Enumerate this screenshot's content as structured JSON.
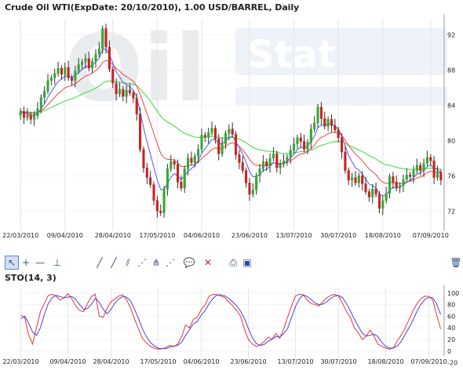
{
  "title": "Crude Oil WTI(ExpDate: 20/10/2010), 1.00 USD/BARREL, Daily",
  "watermark": {
    "left": "Oil",
    "right": "Stat"
  },
  "colors": {
    "up": "#33aa33",
    "down": "#cc2222",
    "ma_fast": "#5555ee",
    "ma_mid": "#ee4444",
    "ma_slow": "#33dd33",
    "sto_k": "#ee3333",
    "sto_d": "#4444dd"
  },
  "toolbar": {
    "tools": [
      "cursor-tool",
      "crosshair-tool",
      "horizontal-line-tool",
      "vertical-line-tool",
      "trend-line-tool",
      "ray-tool",
      "parallel-channel-tool",
      "fan-tool",
      "pitchfork-tool",
      "speed-lines-tool",
      "label-tool",
      "delete-tool",
      "print-tool",
      "save-tool",
      "trash-tool"
    ]
  },
  "sto_title": "STO(14, 3)",
  "chart_data": [
    {
      "type": "candlestick",
      "title": "Crude Oil WTI(ExpDate: 20/10/2010), 1.00 USD/BARREL, Daily",
      "x_tick_labels": [
        "22/03/2010",
        "09/04/2010",
        "28/04/2010",
        "17/05/2010",
        "04/06/2010",
        "23/06/2010",
        "13/07/2010",
        "30/07/2010",
        "18/08/2010",
        "07/09/2010"
      ],
      "y_ticks": [
        72,
        76,
        80,
        84,
        88,
        92
      ],
      "ylim": [
        69.8,
        93.8
      ],
      "close": [
        83.3,
        82.6,
        82.9,
        82.4,
        82.8,
        83.6,
        84.9,
        85.6,
        86.8,
        87.1,
        87.6,
        88.2,
        87.5,
        88.3,
        87.1,
        86.8,
        87.9,
        88.6,
        88.9,
        89.3,
        88.2,
        89.0,
        89.8,
        90.4,
        92.7,
        90.6,
        88.1,
        86.5,
        85.3,
        85.8,
        85.0,
        85.7,
        85.4,
        84.8,
        83.0,
        79.0,
        76.9,
        75.8,
        75.0,
        73.2,
        72.0,
        71.8,
        74.5,
        76.8,
        77.6,
        77.3,
        75.3,
        74.6,
        76.8,
        78.0,
        77.5,
        78.2,
        79.0,
        80.6,
        80.4,
        80.9,
        81.4,
        80.2,
        78.5,
        79.6,
        80.8,
        81.3,
        80.7,
        78.4,
        77.5,
        76.6,
        75.2,
        73.9,
        74.4,
        76.0,
        76.8,
        77.6,
        77.1,
        78.0,
        78.5,
        76.9,
        77.3,
        77.7,
        78.1,
        78.9,
        79.6,
        80.3,
        79.9,
        79.0,
        79.8,
        81.3,
        82.0,
        83.8,
        82.5,
        81.6,
        82.4,
        81.7,
        81.2,
        80.3,
        78.7,
        76.6,
        75.5,
        75.8,
        75.2,
        76.0,
        75.1,
        74.2,
        73.6,
        74.5,
        73.9,
        72.3,
        73.2,
        74.0,
        75.9,
        75.3,
        74.6,
        74.9,
        75.6,
        76.1,
        75.9,
        76.6,
        77.2,
        76.6,
        77.4,
        78.1,
        77.7,
        75.8,
        76.4,
        75.5
      ]
    },
    {
      "type": "line",
      "title": "STO(14, 3)",
      "x_tick_labels": [
        "22/03/2010",
        "09/04/2010",
        "28/04/2010",
        "17/05/2010",
        "04/06/2010",
        "23/06/2010",
        "13/07/2010",
        "30/07/2010",
        "18/08/2010",
        "07/09/2010"
      ],
      "y_ticks": [
        -20,
        0,
        20,
        40,
        60,
        80,
        100
      ],
      "ylim": [
        -22,
        108
      ],
      "series": [
        {
          "values": [
            62,
            58,
            28,
            12,
            40,
            68,
            82,
            96,
            98,
            95,
            88,
            92,
            99,
            90,
            78,
            70,
            68,
            82,
            94,
            98,
            60,
            58,
            74,
            85,
            90,
            95,
            97,
            88,
            74,
            55,
            38,
            22,
            14,
            8,
            5,
            3,
            4,
            6,
            10,
            8,
            12,
            25,
            45,
            40,
            55,
            58,
            72,
            80,
            95,
            98,
            97,
            95,
            92,
            85,
            78,
            70,
            60,
            38,
            20,
            12,
            8,
            10,
            16,
            24,
            20,
            30,
            22,
            38,
            58,
            78,
            95,
            98,
            97,
            88,
            82,
            80,
            78,
            85,
            92,
            96,
            98,
            95,
            82,
            68,
            58,
            40,
            32,
            20,
            25,
            36,
            26,
            12,
            8,
            5,
            3,
            6,
            18,
            28,
            40,
            55,
            70,
            82,
            90,
            95,
            94,
            88,
            62,
            38
          ]
        },
        {
          "values": [
            56,
            60,
            48,
            33,
            27,
            40,
            63,
            82,
            92,
            96,
            94,
            92,
            93,
            94,
            89,
            80,
            72,
            73,
            81,
            91,
            84,
            72,
            64,
            72,
            83,
            90,
            94,
            93,
            86,
            72,
            56,
            38,
            25,
            15,
            9,
            5,
            4,
            4,
            7,
            8,
            10,
            15,
            27,
            37,
            47,
            51,
            62,
            70,
            82,
            91,
            97,
            97,
            95,
            91,
            85,
            78,
            69,
            56,
            39,
            23,
            13,
            10,
            11,
            17,
            20,
            25,
            24,
            30,
            39,
            58,
            77,
            90,
            97,
            94,
            89,
            83,
            80,
            81,
            85,
            91,
            95,
            96,
            92,
            82,
            69,
            55,
            43,
            31,
            26,
            27,
            29,
            25,
            15,
            8,
            5,
            5,
            9,
            17,
            29,
            41,
            54,
            69,
            81,
            89,
            93,
            92,
            81,
            63
          ]
        }
      ]
    }
  ]
}
